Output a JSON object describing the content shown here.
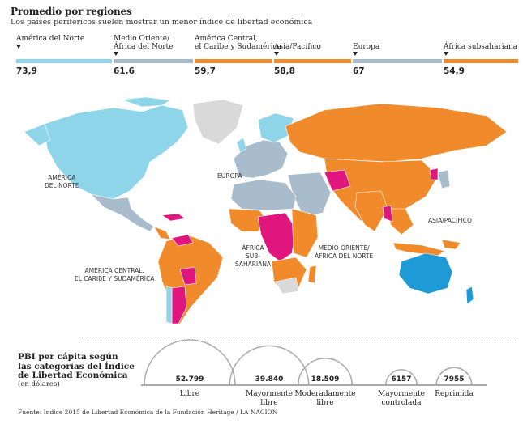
{
  "header": {
    "title": "Promedio por regiones",
    "subtitle": "Los países periféricos suelen mostrar un menor índice de libertad económica"
  },
  "regions": [
    {
      "name_line1": "América del Norte",
      "name_line2": "",
      "value": "73,9",
      "color": "#8fd5ea"
    },
    {
      "name_line1": "Medio Oriente/",
      "name_line2": "África del Norte",
      "value": "61,6",
      "color": "#a8bccb"
    },
    {
      "name_line1": "América Central,",
      "name_line2": "el Caribe y Sudamérica",
      "value": "59,7",
      "color": "#f08a2a"
    },
    {
      "name_line1": "Asia/Pacífico",
      "name_line2": "",
      "value": "58,8",
      "color": "#f08a2a"
    },
    {
      "name_line1": "Europa",
      "name_line2": "",
      "value": "67",
      "color": "#a8bccb"
    },
    {
      "name_line1": "África subsahariana",
      "name_line2": "",
      "value": "54,9",
      "color": "#f08a2a"
    }
  ],
  "map_labels": {
    "north_america": [
      "AMÉRICA",
      "DEL NORTE"
    ],
    "europe": [
      "EUROPA"
    ],
    "africa": [
      "ÁFRICA",
      "SUB-",
      "SAHARIANA"
    ],
    "mideast": [
      "MEDIO ORIENTE/",
      "ÁFRICA DEL NORTE"
    ],
    "asia": [
      "ASIA/PACÍFICO"
    ],
    "latam": [
      "AMÉRICA CENTRAL,",
      "EL CARIBE Y SUDAMÉRICA"
    ]
  },
  "map_colors": {
    "libre": "#1e9ad6",
    "mayormente_libre": "#8fd5ea",
    "moderadamente_libre": "#a8bccb",
    "mayormente_controlada": "#f08a2a",
    "reprimida": "#e0157d",
    "sin_datos": "#d9d9d9"
  },
  "gdp": {
    "title_lines": [
      "PBI per cápita según",
      "las categorías del Índice",
      "de Libertad Económica"
    ],
    "subtitle": "(en dólares)"
  },
  "chart_data": {
    "type": "bubble",
    "title": "PBI per cápita según las categorías del Índice de Libertad Económica",
    "unit": "(en dólares)",
    "categories": [
      "Libre",
      "Mayormente libre",
      "Moderadamente libre",
      "Mayormente controlada",
      "Reprimida"
    ],
    "labels": [
      [
        "Libre"
      ],
      [
        "Mayormente",
        "libre"
      ],
      [
        "Moderadamente",
        "libre"
      ],
      [
        "Mayormente",
        "controlada"
      ],
      [
        "Reprimida"
      ]
    ],
    "values": [
      52799,
      39840,
      18509,
      6157,
      7955
    ],
    "value_labels": [
      "52.799",
      "39.840",
      "18.509",
      "6157",
      "7955"
    ]
  },
  "source": "Fuente: Índice 2015 de Libertad Económica de la Fundación Heritage / LA NACION"
}
